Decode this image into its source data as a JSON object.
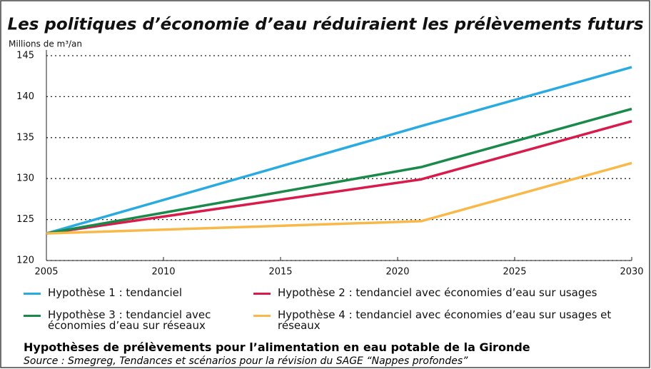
{
  "chart_data": {
    "type": "line",
    "title": "Les politiques d’économie d’eau réduiraient les prélèvements futurs",
    "y_label": "Millions de m³/an",
    "x": [
      2005,
      2021,
      2030
    ],
    "series": [
      {
        "name": "Hypothèse 1 : tendanciel",
        "color": "#29abe2",
        "values": [
          123.3,
          136.4,
          143.6
        ]
      },
      {
        "name": "Hypothèse 2 : tendanciel avec économies d’eau sur usages",
        "color": "#d81b4a",
        "values": [
          123.3,
          129.9,
          137.0
        ]
      },
      {
        "name": "Hypothèse 3 : tendanciel avec économies d’eau sur réseaux",
        "color": "#1a8a4a",
        "values": [
          123.3,
          131.4,
          138.5
        ]
      },
      {
        "name": "Hypothèse 4 : tendanciel avec économies d’eau sur usages et réseaux",
        "color": "#f9b94a",
        "values": [
          123.3,
          124.8,
          131.9
        ]
      }
    ],
    "xlim": [
      2005,
      2030
    ],
    "xticks": [
      2005,
      2010,
      2015,
      2020,
      2025,
      2030
    ],
    "ylim": [
      120,
      145
    ],
    "yticks": [
      120,
      125,
      130,
      135,
      140,
      145
    ],
    "grid": true,
    "subtitle": "Hypothèses de prélèvements pour l’alimentation en eau potable de la Gironde",
    "source": "Source : Smegreg, Tendances et scénarios pour la révision du SAGE “Nappes profondes”"
  }
}
